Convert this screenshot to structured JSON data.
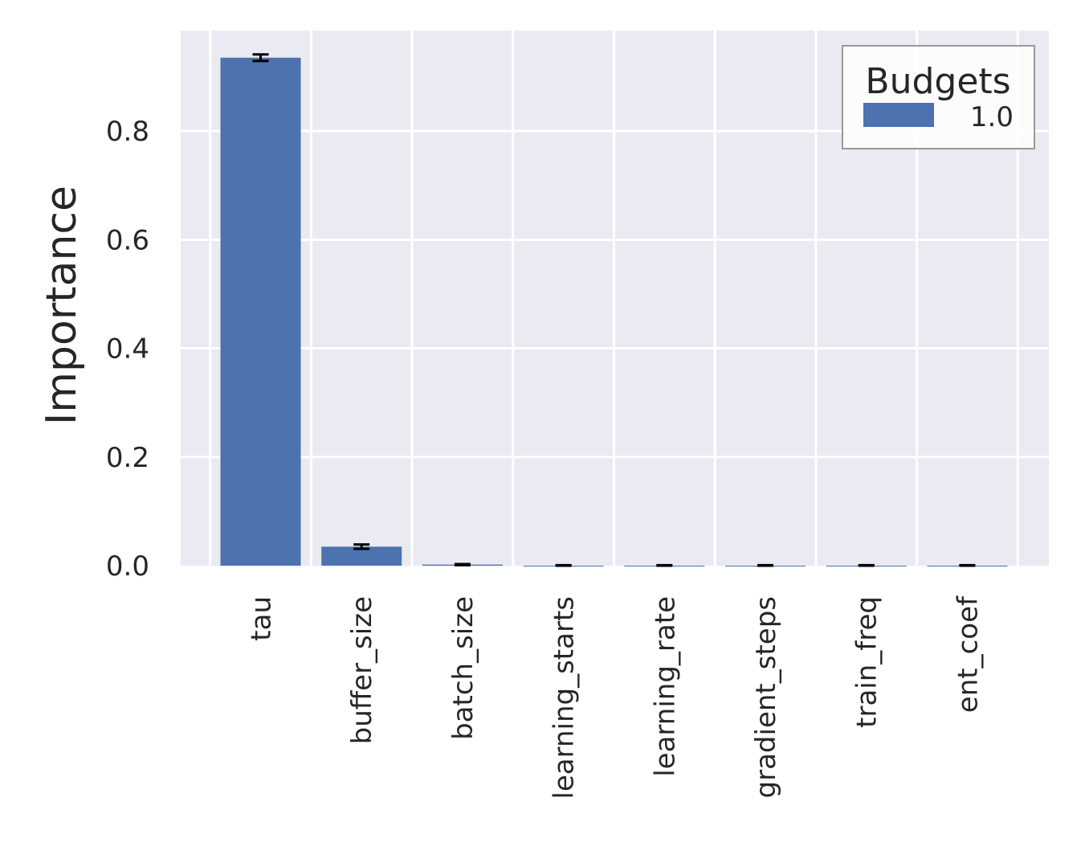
{
  "chart_data": {
    "type": "bar",
    "title": "",
    "xlabel": "",
    "ylabel": "Importance",
    "categories": [
      "tau",
      "buffer_size",
      "batch_size",
      "learning_starts",
      "learning_rate",
      "gradient_steps",
      "train_freq",
      "ent_coef"
    ],
    "series": [
      {
        "name": "1.0",
        "values": [
          0.935,
          0.035,
          0.002,
          0.0,
          0.0,
          0.0,
          0.0,
          0.0
        ],
        "errors": [
          0.006,
          0.004,
          0.001,
          0.001,
          0.001,
          0.001,
          0.001,
          0.001
        ],
        "color": "#4c72b0"
      }
    ],
    "ylim": [
      0,
      0.985
    ],
    "yticks": [
      0.0,
      0.2,
      0.4,
      0.6,
      0.8
    ],
    "ytick_labels": [
      "0.0",
      "0.2",
      "0.4",
      "0.6",
      "0.8"
    ],
    "grid": true,
    "legend": {
      "title": "Budgets",
      "position": "top-right"
    },
    "colors": {
      "background": "#eaeaf2",
      "grid": "#ffffff",
      "bar": "#4c72b0",
      "errorbar": "#000000",
      "text": "#262626"
    }
  }
}
